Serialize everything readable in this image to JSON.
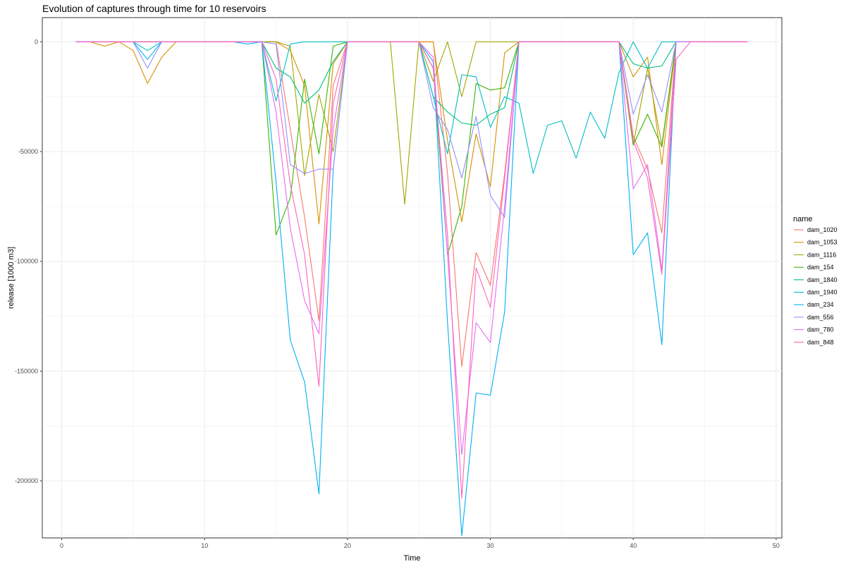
{
  "chart_data": {
    "type": "line",
    "title": "Evolution of captures through time for 10 reservoirs",
    "xlabel": "Time",
    "ylabel": "release [1000 m3]",
    "xlim": [
      -1.36,
      50.4
    ],
    "ylim": [
      -226000,
      11000
    ],
    "x_ticks": [
      0,
      10,
      20,
      30,
      40,
      50
    ],
    "y_ticks": [
      0,
      -50000,
      -100000,
      -150000,
      -200000
    ],
    "y_tick_labels": [
      "0",
      "-50000",
      "-100000",
      "-150000",
      "-200000"
    ],
    "grid": true,
    "legend": {
      "title": "name",
      "position": "right"
    },
    "x": [
      1,
      2,
      3,
      4,
      5,
      6,
      7,
      8,
      9,
      10,
      11,
      12,
      13,
      14,
      15,
      16,
      17,
      18,
      19,
      20,
      21,
      22,
      23,
      24,
      25,
      26,
      27,
      28,
      29,
      30,
      31,
      32,
      33,
      34,
      35,
      36,
      37,
      38,
      39,
      40,
      41,
      42,
      43,
      44,
      45,
      46,
      47,
      48
    ],
    "series": [
      {
        "name": "dam_1020",
        "color": "#F8766D",
        "values": [
          0,
          0,
          0,
          0,
          0,
          0,
          0,
          0,
          0,
          0,
          0,
          0,
          0,
          0,
          0,
          -40000,
          -80000,
          -127000,
          -20000,
          0,
          0,
          0,
          0,
          0,
          0,
          0,
          -60000,
          -148000,
          -96000,
          -111000,
          -60000,
          0,
          0,
          0,
          0,
          0,
          0,
          0,
          0,
          -43000,
          -58000,
          -87000,
          0,
          0,
          0,
          0,
          0,
          0
        ]
      },
      {
        "name": "dam_1053",
        "color": "#D89000",
        "values": [
          0,
          0,
          -2000,
          0,
          -4000,
          -19000,
          -7000,
          0,
          0,
          0,
          0,
          0,
          0,
          0,
          0,
          -4000,
          -20000,
          -83000,
          -10000,
          0,
          0,
          0,
          0,
          0,
          0,
          0,
          -45000,
          -82000,
          -42000,
          -66000,
          -5000,
          0,
          0,
          0,
          0,
          0,
          0,
          0,
          0,
          -16000,
          -7000,
          -56000,
          0,
          0,
          0,
          0,
          0,
          0
        ]
      },
      {
        "name": "dam_1116",
        "color": "#A3A500",
        "values": [
          0,
          0,
          0,
          0,
          0,
          0,
          0,
          0,
          0,
          0,
          0,
          0,
          0,
          0,
          0,
          -2000,
          -61000,
          -24000,
          -50000,
          0,
          0,
          0,
          0,
          -74000,
          0,
          -18000,
          0,
          -25000,
          0,
          0,
          0,
          0,
          0,
          0,
          0,
          0,
          0,
          0,
          0,
          -47000,
          -12000,
          -47000,
          0,
          0,
          0,
          0,
          0,
          0
        ]
      },
      {
        "name": "dam_154",
        "color": "#39B600",
        "values": [
          0,
          0,
          0,
          0,
          0,
          0,
          0,
          0,
          0,
          0,
          0,
          0,
          0,
          0,
          -88000,
          -71000,
          -17000,
          -51000,
          -2000,
          0,
          0,
          0,
          0,
          0,
          0,
          -12000,
          -97000,
          -75000,
          -19000,
          -22000,
          -21000,
          0,
          0,
          0,
          0,
          0,
          0,
          0,
          0,
          -47000,
          -33000,
          -48000,
          0,
          0,
          0,
          0,
          0,
          0
        ]
      },
      {
        "name": "dam_1840",
        "color": "#00BF7D",
        "values": [
          0,
          0,
          0,
          0,
          0,
          0,
          0,
          0,
          0,
          0,
          0,
          0,
          0,
          0,
          -12000,
          -16000,
          -28000,
          -22000,
          -9000,
          0,
          0,
          0,
          0,
          0,
          0,
          -25000,
          -32000,
          -37000,
          -38000,
          -33000,
          -30000,
          0,
          0,
          0,
          0,
          0,
          0,
          0,
          0,
          -10000,
          -12000,
          -11000,
          0,
          0,
          0,
          0,
          0,
          0
        ]
      },
      {
        "name": "dam_1940",
        "color": "#00BFC4",
        "values": [
          0,
          0,
          0,
          0,
          0,
          -4000,
          0,
          0,
          0,
          0,
          0,
          0,
          0,
          0,
          -27000,
          -1000,
          0,
          0,
          0,
          0,
          0,
          0,
          0,
          0,
          0,
          -25000,
          -51000,
          -15000,
          -16000,
          -39000,
          -25000,
          -28000,
          -60000,
          -38000,
          -36000,
          -53000,
          -32000,
          -44000,
          -14000,
          0,
          -12000,
          0,
          0,
          0,
          0,
          0,
          0,
          0
        ]
      },
      {
        "name": "dam_234",
        "color": "#00B0F6",
        "values": [
          0,
          0,
          0,
          0,
          0,
          -8000,
          0,
          0,
          0,
          0,
          0,
          0,
          -1000,
          0,
          -64000,
          -136000,
          -155000,
          -206000,
          -58000,
          0,
          0,
          0,
          0,
          0,
          0,
          -9000,
          -128000,
          -225000,
          -160000,
          -161000,
          -123000,
          0,
          0,
          0,
          0,
          0,
          0,
          0,
          0,
          -97000,
          -87000,
          -138000,
          0,
          0,
          0,
          0,
          0,
          0
        ]
      },
      {
        "name": "dam_556",
        "color": "#9590FF",
        "values": [
          0,
          0,
          0,
          0,
          0,
          -12000,
          0,
          0,
          0,
          0,
          0,
          0,
          0,
          0,
          -1000,
          -56000,
          -60000,
          -58000,
          -58000,
          0,
          0,
          0,
          0,
          0,
          0,
          -30000,
          -40000,
          -62000,
          -34000,
          -70000,
          -80000,
          0,
          0,
          0,
          0,
          0,
          0,
          0,
          0,
          -33000,
          -15000,
          -32000,
          0,
          0,
          0,
          0,
          0,
          0
        ]
      },
      {
        "name": "dam_780",
        "color": "#E76BF3",
        "values": [
          0,
          0,
          0,
          0,
          0,
          0,
          0,
          0,
          0,
          0,
          0,
          0,
          0,
          0,
          -32000,
          -85000,
          -118000,
          -133000,
          -40000,
          0,
          0,
          0,
          0,
          0,
          0,
          -7000,
          -97000,
          -188000,
          -128000,
          -137000,
          -75000,
          0,
          0,
          0,
          0,
          0,
          0,
          0,
          0,
          -67000,
          -56000,
          -104000,
          0,
          0,
          0,
          0,
          0,
          0
        ]
      },
      {
        "name": "dam_848",
        "color": "#FF62BC",
        "values": [
          0,
          0,
          0,
          0,
          0,
          0,
          0,
          0,
          0,
          0,
          0,
          0,
          0,
          0,
          -17000,
          -65000,
          -97000,
          -157000,
          -28000,
          0,
          0,
          0,
          0,
          0,
          0,
          -12000,
          -88000,
          -208000,
          -103000,
          -121000,
          -62000,
          0,
          0,
          0,
          0,
          0,
          0,
          0,
          0,
          -45000,
          -62000,
          -106000,
          -8000,
          0,
          0,
          0,
          0,
          0
        ]
      }
    ]
  }
}
